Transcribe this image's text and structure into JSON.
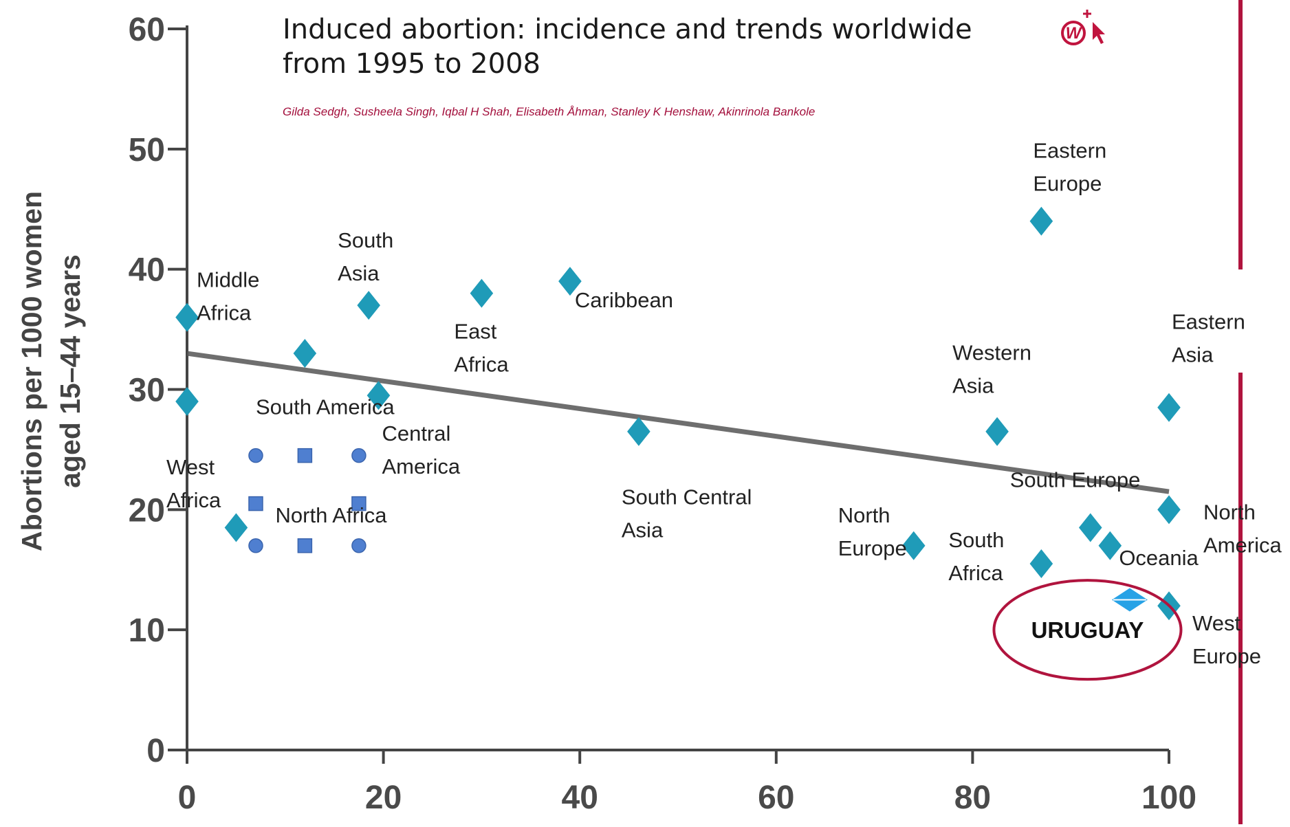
{
  "header": {
    "title": "Induced abortion: incidence and trends worldwide from 1995 to 2008",
    "authors": "Gilda Sedgh, Susheela Singh, Iqbal H Shah, Elisabeth Åhman, Stanley K Henshaw, Akinrinola Bankole"
  },
  "brand": {
    "icon": "wiley-online-w-icon"
  },
  "colors": {
    "marker": "#1f9bb8",
    "marker_blue": "#4f7fd0",
    "trend": "#555555",
    "accent": "#b0143e",
    "highlight_marker": "#27a2e6",
    "axis": "#444444"
  },
  "chart_data": {
    "type": "scatter",
    "title": "Induced abortion: incidence and trends worldwide from 1995 to 2008",
    "xlabel": "",
    "ylabel": "Abortions per 1000 women aged 15–44 years",
    "xlim": [
      0,
      100
    ],
    "ylim": [
      0,
      60
    ],
    "xticks": [
      0,
      20,
      40,
      60,
      80,
      100
    ],
    "yticks": [
      0,
      10,
      20,
      30,
      40,
      50,
      60
    ],
    "grid": false,
    "series": [
      {
        "points": [
          {
            "x": 0,
            "y": 36,
            "label": "Middle Africa"
          },
          {
            "x": 0,
            "y": 29,
            "label": "West Africa"
          },
          {
            "x": 5,
            "y": 18.5,
            "label": ""
          },
          {
            "x": 12,
            "y": 33,
            "label": ""
          },
          {
            "x": 18.5,
            "y": 37,
            "label": "South Asia"
          },
          {
            "x": 19.5,
            "y": 29.5,
            "label": "Central America"
          },
          {
            "x": 30,
            "y": 38,
            "label": "East Africa"
          },
          {
            "x": 39,
            "y": 39,
            "label": "Caribbean"
          },
          {
            "x": 46,
            "y": 26.5,
            "label": "South Central Asia"
          },
          {
            "x": 74,
            "y": 17,
            "label": "North Europe"
          },
          {
            "x": 82.5,
            "y": 26.5,
            "label": "Western Asia"
          },
          {
            "x": 87,
            "y": 44,
            "label": "Eastern Europe"
          },
          {
            "x": 87,
            "y": 15.5,
            "label": "South Africa"
          },
          {
            "x": 92,
            "y": 18.5,
            "label": "South Europe"
          },
          {
            "x": 94,
            "y": 17,
            "label": "Oceania"
          },
          {
            "x": 100,
            "y": 28.5,
            "label": "Eastern Asia"
          },
          {
            "x": 100,
            "y": 20,
            "label": "North America"
          },
          {
            "x": 100,
            "y": 12,
            "label": "West Europe"
          }
        ]
      },
      {
        "name": "South America",
        "points": [
          {
            "x": 7,
            "y": 24.5
          },
          {
            "x": 7,
            "y": 17
          },
          {
            "x": 17.5,
            "y": 24.5
          },
          {
            "x": 17.5,
            "y": 17
          }
        ]
      },
      {
        "name": "North Africa",
        "points": [
          {
            "x": 12,
            "y": 24.5
          },
          {
            "x": 7,
            "y": 20.5
          },
          {
            "x": 17.5,
            "y": 20.5
          },
          {
            "x": 12,
            "y": 17
          }
        ]
      },
      {
        "name": "URUGUAY",
        "points": [
          {
            "x": 96,
            "y": 12.5
          }
        ]
      }
    ],
    "trendline": {
      "x": [
        0,
        100
      ],
      "y": [
        33,
        21.5
      ]
    },
    "annotations": [
      {
        "text": "South America",
        "x": 7,
        "y": 30
      },
      {
        "text": "North Africa",
        "x": 9,
        "y": 21
      },
      {
        "text": "URUGUAY",
        "x": 91,
        "y": 10
      }
    ]
  }
}
